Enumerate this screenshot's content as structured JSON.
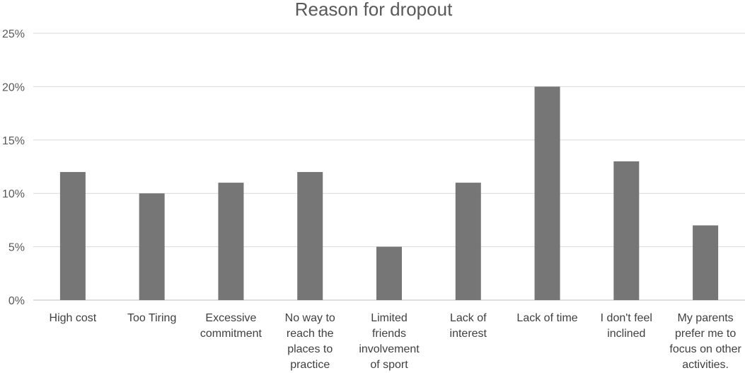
{
  "chart_data": {
    "type": "bar",
    "title": "Reason for dropout",
    "xlabel": "",
    "ylabel": "",
    "categories": [
      [
        "High cost"
      ],
      [
        "Too Tiring"
      ],
      [
        "Excessive",
        "commitment"
      ],
      [
        "No way to",
        "reach the",
        "places to",
        "practice"
      ],
      [
        "Limited",
        "friends",
        "involvement",
        "of sport"
      ],
      [
        "Lack of",
        "interest"
      ],
      [
        "Lack of time"
      ],
      [
        "I don't feel",
        "inclined"
      ],
      [
        "My parents",
        "prefer me to",
        "focus on other",
        "activities."
      ]
    ],
    "values": [
      12,
      10,
      11,
      12,
      5,
      11,
      20,
      13,
      7
    ],
    "value_unit": "%",
    "ylim": [
      0,
      25
    ],
    "yticks": [
      "0%",
      "5%",
      "10%",
      "15%",
      "20%",
      "25%"
    ],
    "ytick_values": [
      0,
      5,
      10,
      15,
      20,
      25
    ],
    "grid": true,
    "legend": "none",
    "colors": {
      "bar": "#767676",
      "grid": "#d9d9d9",
      "text": "#595959"
    }
  }
}
